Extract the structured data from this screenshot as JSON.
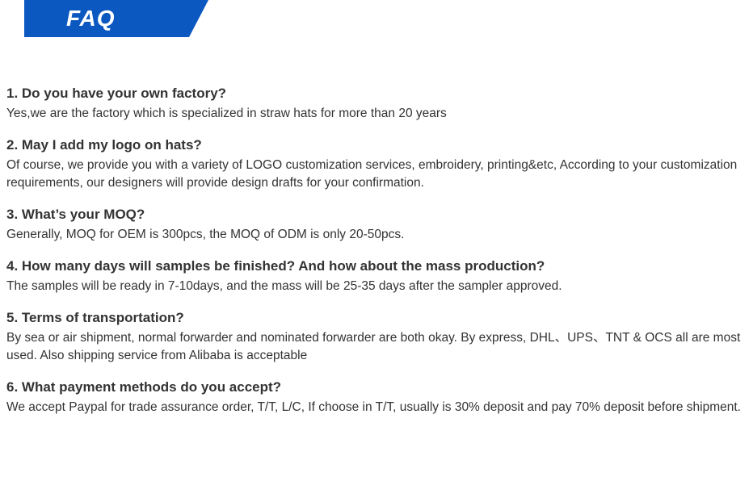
{
  "banner": {
    "label": "FAQ",
    "color": "#0a58c0"
  },
  "faq": {
    "items": [
      {
        "question": "1. Do you have your own factory?",
        "answer": "Yes,we are the factory which is specialized in straw hats for more than 20 years"
      },
      {
        "question": "2. May I add my logo on hats?",
        "answer": "Of course, we provide you with a variety of LOGO customization services, embroidery, printing&etc, According to your customization requirements, our designers will provide design drafts for your confirmation."
      },
      {
        "question": "3. What’s your MOQ?",
        "answer": "Generally, MOQ for OEM is 300pcs, the MOQ of ODM is only 20-50pcs."
      },
      {
        "question": "4. How many days will samples be finished? And how about the mass production?",
        "answer": "The samples will be ready in 7-10days, and the mass will be 25-35 days after the sampler approved."
      },
      {
        "question": "5. Terms of transportation?",
        "answer": "By sea or air shipment, normal forwarder and nominated forwarder are both okay. By express, DHL、UPS、TNT & OCS all are most used. Also shipping service from Alibaba is acceptable"
      },
      {
        "question": "6. What payment methods do you accept?",
        "answer": "We accept Paypal for trade assurance order, T/T, L/C, If choose in T/T, usually is 30% deposit and pay 70% deposit before shipment."
      }
    ]
  }
}
